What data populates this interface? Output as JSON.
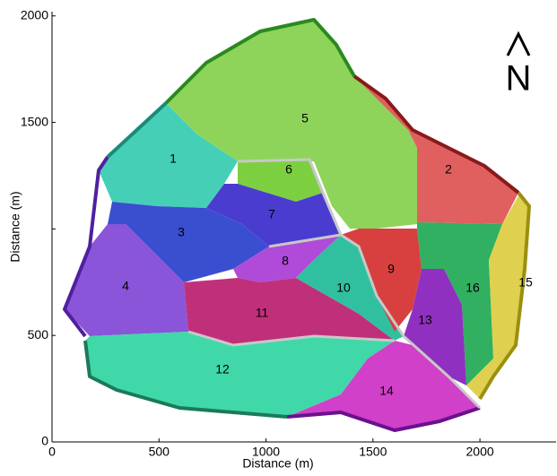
{
  "axes": {
    "x_label": "Distance (m)",
    "y_label": "Distance (m)",
    "xlim": [
      0,
      2356
    ],
    "ylim": [
      0,
      2020
    ],
    "xticks": [
      0,
      500,
      1000,
      1500,
      2000
    ],
    "yticks": [
      0,
      500,
      {
        "value": 1000,
        "label": null
      },
      1500,
      2000
    ]
  },
  "north": "N",
  "regions": [
    "1",
    "2",
    "3",
    "4",
    "5",
    "6",
    "7",
    "8",
    "9",
    "10",
    "11",
    "12",
    "13",
    "14",
    "15",
    "16"
  ]
}
